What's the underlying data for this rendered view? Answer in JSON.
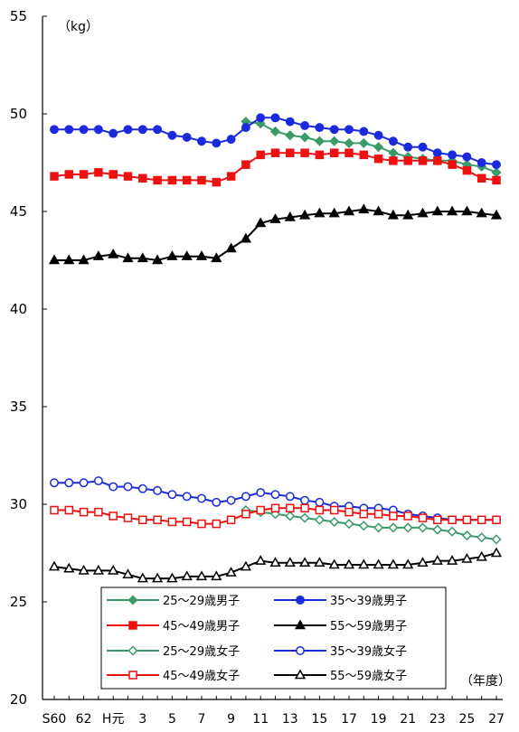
{
  "chart_data": {
    "type": "line",
    "ylabel": "（kg）",
    "xlabel": "（年度）",
    "ylim": [
      20,
      55
    ],
    "yticks": [
      20,
      25,
      30,
      35,
      40,
      45,
      50,
      55
    ],
    "x": [
      "S60",
      "61",
      "62",
      "63",
      "H元",
      "2",
      "3",
      "4",
      "5",
      "6",
      "7",
      "8",
      "9",
      "10",
      "11",
      "12",
      "13",
      "14",
      "15",
      "16",
      "17",
      "18",
      "19",
      "20",
      "21",
      "22",
      "23",
      "24",
      "25",
      "26",
      "27"
    ],
    "xtick_labels": [
      "S60",
      "62",
      "H元",
      "3",
      "5",
      "7",
      "9",
      "11",
      "13",
      "15",
      "17",
      "19",
      "21",
      "23",
      "25",
      "27"
    ],
    "grid": false,
    "legend": "bottom",
    "series": [
      {
        "name": "25～29歳男子",
        "color": "#3a9a6a",
        "marker": "diamond",
        "filled": true,
        "values": [
          null,
          null,
          null,
          null,
          null,
          null,
          null,
          null,
          null,
          null,
          null,
          null,
          null,
          49.6,
          49.5,
          49.1,
          48.9,
          48.8,
          48.6,
          48.6,
          48.5,
          48.5,
          48.3,
          48.0,
          47.8,
          47.7,
          47.6,
          47.6,
          47.4,
          47.3,
          47.0
        ]
      },
      {
        "name": "35～39歳男子",
        "color": "#1a2adc",
        "marker": "circle",
        "filled": true,
        "values": [
          49.2,
          49.2,
          49.2,
          49.2,
          49.0,
          49.2,
          49.2,
          49.2,
          48.9,
          48.8,
          48.6,
          48.5,
          48.7,
          49.3,
          49.8,
          49.8,
          49.6,
          49.4,
          49.3,
          49.2,
          49.2,
          49.1,
          48.9,
          48.6,
          48.3,
          48.3,
          48.0,
          47.9,
          47.8,
          47.5,
          47.4
        ]
      },
      {
        "name": "45～49歳男子",
        "color": "#ee1111",
        "marker": "square",
        "filled": true,
        "values": [
          46.8,
          46.9,
          46.9,
          47.0,
          46.9,
          46.8,
          46.7,
          46.6,
          46.6,
          46.6,
          46.6,
          46.5,
          46.8,
          47.4,
          47.9,
          48.0,
          48.0,
          48.0,
          47.9,
          48.0,
          48.0,
          47.9,
          47.7,
          47.6,
          47.6,
          47.6,
          47.6,
          47.4,
          47.1,
          46.7,
          46.6
        ]
      },
      {
        "name": "55～59歳男子",
        "color": "#000000",
        "marker": "triangle",
        "filled": true,
        "values": [
          42.5,
          42.5,
          42.5,
          42.7,
          42.8,
          42.6,
          42.6,
          42.5,
          42.7,
          42.7,
          42.7,
          42.6,
          43.1,
          43.6,
          44.4,
          44.6,
          44.7,
          44.8,
          44.9,
          44.9,
          45.0,
          45.1,
          45.0,
          44.8,
          44.8,
          44.9,
          45.0,
          45.0,
          45.0,
          44.9,
          44.8
        ]
      },
      {
        "name": "25～29歳女子",
        "color": "#3a9a6a",
        "marker": "diamond",
        "filled": false,
        "values": [
          null,
          null,
          null,
          null,
          null,
          null,
          null,
          null,
          null,
          null,
          null,
          null,
          null,
          29.7,
          29.6,
          29.5,
          29.4,
          29.3,
          29.2,
          29.1,
          29.0,
          28.9,
          28.8,
          28.8,
          28.8,
          28.8,
          28.7,
          28.6,
          28.4,
          28.3,
          28.2
        ]
      },
      {
        "name": "35～39歳女子",
        "color": "#1a2adc",
        "marker": "circle",
        "filled": false,
        "values": [
          31.1,
          31.1,
          31.1,
          31.2,
          30.9,
          30.9,
          30.8,
          30.7,
          30.5,
          30.4,
          30.3,
          30.1,
          30.2,
          30.4,
          30.6,
          30.5,
          30.4,
          30.2,
          30.1,
          29.9,
          29.9,
          29.8,
          29.8,
          29.7,
          29.5,
          29.4,
          29.3,
          29.2,
          29.2,
          29.2,
          29.2
        ]
      },
      {
        "name": "45～49歳女子",
        "color": "#ee1111",
        "marker": "square",
        "filled": false,
        "values": [
          29.7,
          29.7,
          29.6,
          29.6,
          29.4,
          29.3,
          29.2,
          29.2,
          29.1,
          29.1,
          29.0,
          29.0,
          29.2,
          29.5,
          29.7,
          29.8,
          29.8,
          29.8,
          29.7,
          29.7,
          29.6,
          29.5,
          29.5,
          29.4,
          29.4,
          29.3,
          29.2,
          29.2,
          29.2,
          29.2,
          29.2
        ]
      },
      {
        "name": "55～59歳女子",
        "color": "#000000",
        "marker": "triangle",
        "filled": false,
        "values": [
          26.8,
          26.7,
          26.6,
          26.6,
          26.6,
          26.4,
          26.2,
          26.2,
          26.2,
          26.3,
          26.3,
          26.3,
          26.5,
          26.8,
          27.1,
          27.0,
          27.0,
          27.0,
          27.0,
          26.9,
          26.9,
          26.9,
          26.9,
          26.9,
          26.9,
          27.0,
          27.1,
          27.1,
          27.2,
          27.3,
          27.5
        ]
      }
    ]
  }
}
